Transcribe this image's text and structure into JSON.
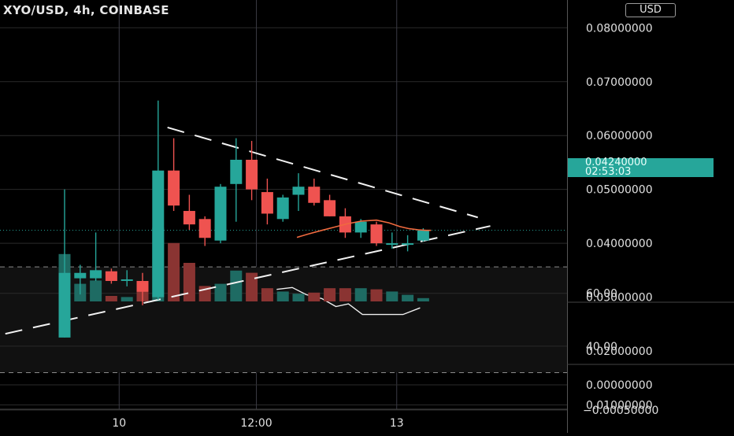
{
  "header": {
    "title": "XYO/USD, 4h, COINBASE",
    "currency_button": "USD"
  },
  "last_price": {
    "value": "0.04240000",
    "countdown": "02:53:03"
  },
  "colors": {
    "up": "#26a69a",
    "down": "#ef5350",
    "ma": "#f06a3f",
    "pane_bg": "#111111",
    "grid": "#2a2a2a"
  },
  "chart_data": [
    {
      "type": "candlestick",
      "title": "XYO/USD, 4h, COINBASE",
      "ylim": [
        0.005,
        0.085
      ],
      "y_ticks": [
        "0.01000000",
        "0.02000000",
        "0.03000000",
        "0.04000000",
        "0.05000000",
        "0.06000000",
        "0.07000000",
        "0.08000000"
      ],
      "y_tick_values": [
        0.01,
        0.02,
        0.03,
        0.04,
        0.05,
        0.06,
        0.07,
        0.08
      ],
      "x_ticks": [
        "10",
        "12:00",
        "13"
      ],
      "x_tick_candle_index": [
        3.5,
        12.3,
        21.3
      ],
      "grid": true,
      "candles": [
        {
          "o": 0.0225,
          "h": 0.05,
          "l": 0.0225,
          "c": 0.0345
        },
        {
          "o": 0.0335,
          "h": 0.036,
          "l": 0.0305,
          "c": 0.0345
        },
        {
          "o": 0.0335,
          "h": 0.042,
          "l": 0.033,
          "c": 0.035
        },
        {
          "o": 0.0348,
          "h": 0.0353,
          "l": 0.0325,
          "c": 0.033
        },
        {
          "o": 0.0333,
          "h": 0.035,
          "l": 0.032,
          "c": 0.0333
        },
        {
          "o": 0.033,
          "h": 0.0345,
          "l": 0.0285,
          "c": 0.031
        },
        {
          "o": 0.03,
          "h": 0.0665,
          "l": 0.0295,
          "c": 0.0535
        },
        {
          "o": 0.0535,
          "h": 0.0595,
          "l": 0.046,
          "c": 0.047
        },
        {
          "o": 0.046,
          "h": 0.049,
          "l": 0.0425,
          "c": 0.0435
        },
        {
          "o": 0.0445,
          "h": 0.045,
          "l": 0.0395,
          "c": 0.041
        },
        {
          "o": 0.0405,
          "h": 0.051,
          "l": 0.04,
          "c": 0.0505
        },
        {
          "o": 0.051,
          "h": 0.0595,
          "l": 0.044,
          "c": 0.0555
        },
        {
          "o": 0.0555,
          "h": 0.059,
          "l": 0.048,
          "c": 0.05
        },
        {
          "o": 0.0495,
          "h": 0.052,
          "l": 0.0435,
          "c": 0.0455
        },
        {
          "o": 0.0445,
          "h": 0.049,
          "l": 0.044,
          "c": 0.0485
        },
        {
          "o": 0.049,
          "h": 0.053,
          "l": 0.046,
          "c": 0.0505
        },
        {
          "o": 0.0505,
          "h": 0.052,
          "l": 0.047,
          "c": 0.0475
        },
        {
          "o": 0.048,
          "h": 0.049,
          "l": 0.045,
          "c": 0.045
        },
        {
          "o": 0.045,
          "h": 0.0465,
          "l": 0.041,
          "c": 0.042
        },
        {
          "o": 0.042,
          "h": 0.0445,
          "l": 0.041,
          "c": 0.044
        },
        {
          "o": 0.0435,
          "h": 0.044,
          "l": 0.0395,
          "c": 0.04
        },
        {
          "o": 0.04,
          "h": 0.042,
          "l": 0.039,
          "c": 0.04
        },
        {
          "o": 0.04,
          "h": 0.0415,
          "l": 0.0385,
          "c": 0.04
        },
        {
          "o": 0.0405,
          "h": 0.0428,
          "l": 0.0403,
          "c": 0.0424
        }
      ],
      "moving_average": {
        "start_index": 15,
        "values": [
          0.0411,
          0.0417,
          0.0424,
          0.043,
          0.0436,
          0.0441,
          0.0443,
          0.0438,
          0.0431,
          0.0427,
          0.0425,
          0.0424,
          0.0424
        ],
        "start_offset": 0,
        "x_index": [
          14.9,
          15.6,
          16.5,
          17.3,
          18.1,
          19.0,
          20.0,
          20.8,
          21.5,
          22.1,
          22.7,
          23.2,
          23.5
        ]
      },
      "volume": [
        4.3,
        1.6,
        1.9,
        0.5,
        0.4,
        0.9,
        6.7,
        5.3,
        3.5,
        1.4,
        1.6,
        2.8,
        2.6,
        1.2,
        0.9,
        0.7,
        0.8,
        1.2,
        1.2,
        1.2,
        1.1,
        0.9,
        0.6,
        0.3
      ],
      "trendlines": [
        {
          "from": [
            -3.8,
            0.0232
          ],
          "to": [
            27.3,
            0.0432
          ]
        },
        {
          "from": [
            6.6,
            0.0615
          ],
          "to": [
            26.5,
            0.0448
          ]
        }
      ]
    },
    {
      "type": "line",
      "y_ticks": [
        "40.00",
        "60.00"
      ],
      "y_tick_values": [
        40,
        60
      ],
      "ylim": [
        31,
        70
      ],
      "bands": [
        30,
        70
      ],
      "x_index": [
        13.6,
        14.6,
        15.5,
        16.5,
        17.4,
        18.2,
        19.1,
        19.9,
        20.8,
        21.7,
        22.8
      ],
      "values": [
        61.5,
        62.2,
        59.5,
        58.0,
        55.0,
        56.0,
        52.0,
        52.0,
        52.0,
        52.0,
        54.5
      ]
    },
    {
      "type": "line",
      "y_ticks": [
        "0.00000000",
        "−0.00050000"
      ],
      "y_tick_values": [
        0.0,
        -0.0005
      ],
      "values": []
    }
  ]
}
